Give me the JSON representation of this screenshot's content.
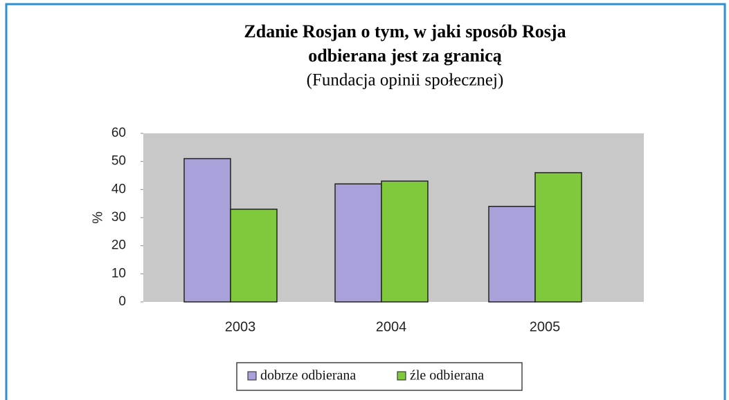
{
  "chart_data": {
    "type": "bar",
    "title": "Zdanie Rosjan o tym, w jaki sposób Rosja",
    "title_line2": "odbierana jest za granicą",
    "subtitle": "(Fundacja opinii społecznej)",
    "y_label": "%",
    "categories": [
      "2003",
      "2004",
      "2005"
    ],
    "series": [
      {
        "name": "dobrze odbierana",
        "color": "#a9a2da",
        "values": [
          51,
          42,
          34
        ]
      },
      {
        "name": "źle odbierana",
        "color": "#80c83c",
        "values": [
          33,
          43,
          46
        ]
      }
    ],
    "ylim": [
      0,
      60
    ],
    "yticks": [
      0,
      10,
      20,
      30,
      40,
      50,
      60
    ],
    "grid": false,
    "legend": "bottom"
  }
}
